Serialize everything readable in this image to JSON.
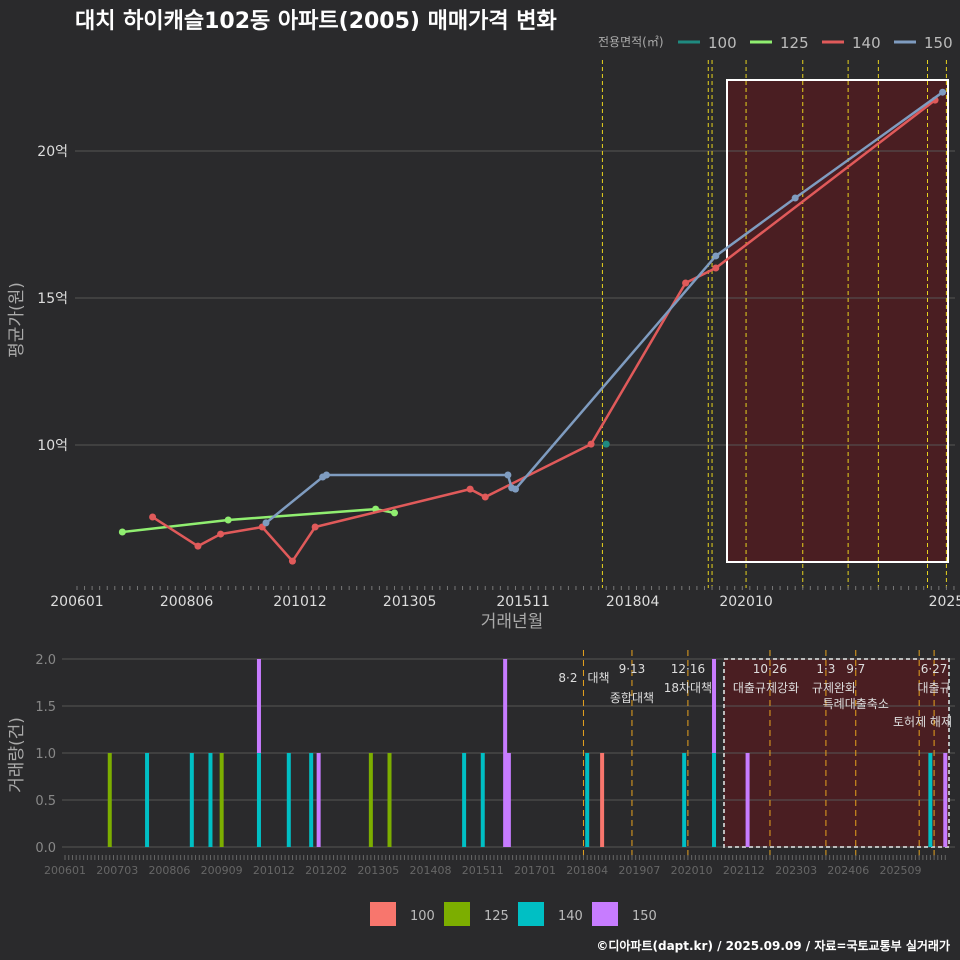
{
  "title": "대치 하이캐슬102동 아파트(2005) 매매가격 변화",
  "footer": "©디아파트(dapt.kr) / 2025.09.09 / 자료=국토교통부 실거래가",
  "chart_data": [
    {
      "type": "line",
      "title": "대치 하이캐슬102동 아파트(2005) 매매가격 변화",
      "xlabel": "거래년월",
      "ylabel": "평균가(원)",
      "legend_title": "전용면적(㎡)",
      "legend_position": "top-right",
      "xticks": [
        "200601",
        "200806",
        "201012",
        "201305",
        "201511",
        "201804",
        "202010",
        "2025"
      ],
      "yticks": [
        "10억",
        "15억",
        "20억"
      ],
      "ylim": [
        5.0,
        22.5
      ],
      "series": [
        {
          "name": "100",
          "color": "#1f8a80",
          "points": [
            [
              "201709",
              10.03
            ]
          ]
        },
        {
          "name": "125",
          "color": "#90ee70",
          "points": [
            [
              "200701",
              7.04
            ],
            [
              "200905",
              7.45
            ],
            [
              "201208",
              7.82
            ],
            [
              "201301",
              7.69
            ]
          ]
        },
        {
          "name": "140",
          "color": "#e05a5a",
          "points": [
            [
              "200709",
              7.55
            ],
            [
              "200809",
              6.56
            ],
            [
              "200903",
              6.97
            ],
            [
              "201002",
              7.21
            ],
            [
              "201010",
              6.05
            ],
            [
              "201104",
              7.21
            ],
            [
              "201409",
              8.5
            ],
            [
              "201501",
              8.23
            ],
            [
              "201705",
              10.03
            ],
            [
              "201906",
              15.51
            ],
            [
              "202002",
              16.02
            ],
            [
              "202412",
              21.73
            ]
          ]
        },
        {
          "name": "150",
          "color": "#7f9cc0",
          "points": [
            [
              "201003",
              7.35
            ],
            [
              "201106",
              8.91
            ],
            [
              "201107",
              8.98
            ],
            [
              "201507",
              8.98
            ],
            [
              "201508",
              8.54
            ],
            [
              "201509",
              8.5
            ],
            [
              "202002",
              16.43
            ],
            [
              "202111",
              18.4
            ],
            [
              "202502",
              22.0
            ]
          ]
        }
      ],
      "event_months": [
        "201708",
        "202001",
        "201912",
        "202010",
        "202201",
        "202301",
        "202309",
        "202410",
        "202503"
      ]
    },
    {
      "type": "bar",
      "xlabel": "",
      "ylabel": "거래량(건)",
      "ylim": [
        0,
        2.0
      ],
      "yticks": [
        "0.0",
        "0.5",
        "1.0",
        "1.5",
        "2.0"
      ],
      "xticks": [
        "200601",
        "200703",
        "200806",
        "200909",
        "201012",
        "201202",
        "201305",
        "201408",
        "201511",
        "201701",
        "201804",
        "201907",
        "202010",
        "202112",
        "202303",
        "202406",
        "202509"
      ],
      "legend": [
        {
          "name": "100",
          "color": "#f8766d"
        },
        {
          "name": "125",
          "color": "#7cae00"
        },
        {
          "name": "140",
          "color": "#00bfc4"
        },
        {
          "name": "150",
          "color": "#c77cff"
        }
      ],
      "bars": [
        {
          "month": "200701",
          "100": 0,
          "125": 1,
          "140": 0,
          "150": 0
        },
        {
          "month": "200711",
          "100": 0,
          "125": 0,
          "140": 1,
          "150": 0
        },
        {
          "month": "200811",
          "100": 0,
          "125": 0,
          "140": 1,
          "150": 0
        },
        {
          "month": "200904",
          "100": 0,
          "125": 0,
          "140": 1,
          "150": 0
        },
        {
          "month": "200907",
          "100": 0,
          "125": 1,
          "140": 0,
          "150": 0
        },
        {
          "month": "201005",
          "100": 0,
          "125": 0,
          "140": 1,
          "150": 1
        },
        {
          "month": "201101",
          "100": 0,
          "125": 0,
          "140": 1,
          "150": 0
        },
        {
          "month": "201107",
          "100": 0,
          "125": 0,
          "140": 1,
          "150": 0
        },
        {
          "month": "201109",
          "100": 0,
          "125": 0,
          "140": 0,
          "150": 1
        },
        {
          "month": "201211",
          "100": 0,
          "125": 1,
          "140": 0,
          "150": 0
        },
        {
          "month": "201304",
          "100": 0,
          "125": 1,
          "140": 0,
          "150": 0
        },
        {
          "month": "201412",
          "100": 0,
          "125": 0,
          "140": 1,
          "150": 0
        },
        {
          "month": "201505",
          "100": 0,
          "125": 0,
          "140": 1,
          "150": 0
        },
        {
          "month": "201511",
          "100": 0,
          "125": 0,
          "140": 0,
          "150": 2
        },
        {
          "month": "201512",
          "100": 0,
          "125": 0,
          "140": 0,
          "150": 1
        },
        {
          "month": "201709",
          "100": 0,
          "125": 0,
          "140": 1,
          "150": 0
        },
        {
          "month": "201801",
          "100": 1,
          "125": 0,
          "140": 0,
          "150": 0
        },
        {
          "month": "201911",
          "100": 0,
          "125": 0,
          "140": 1,
          "150": 0
        },
        {
          "month": "202007",
          "100": 0,
          "125": 0,
          "140": 1,
          "150": 1
        },
        {
          "month": "202104",
          "100": 0,
          "125": 0,
          "140": 0,
          "150": 1
        },
        {
          "month": "202505",
          "100": 0,
          "125": 0,
          "140": 1,
          "150": 0
        },
        {
          "month": "202509",
          "100": 0,
          "125": 0,
          "140": 0,
          "150": 1
        }
      ],
      "events": [
        {
          "month": "201708",
          "date": "8·2",
          "label": "대책"
        },
        {
          "month": "201809",
          "date": "9·13",
          "label": "종합대책"
        },
        {
          "month": "201912",
          "date": "12·16",
          "label": "18차대책"
        },
        {
          "month": "202110",
          "date": "10·26",
          "label": "대출규제강화"
        },
        {
          "month": "202301",
          "date": "1·3",
          "label": "규제완화"
        },
        {
          "month": "202309",
          "date": "9·7",
          "label": "특례대출축소"
        },
        {
          "month": "202502",
          "date": "",
          "label": "토허제 해제"
        },
        {
          "month": "202506",
          "date": "6·27",
          "label": "대출규"
        }
      ]
    }
  ]
}
